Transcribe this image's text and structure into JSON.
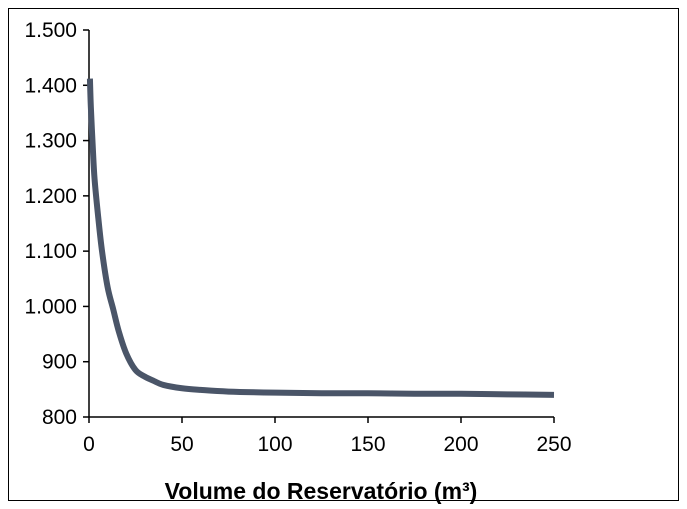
{
  "chart_data": {
    "type": "line",
    "title": "",
    "xlabel": "Volume do Reservatório (m³)",
    "ylabel": "",
    "xlim": [
      0,
      250
    ],
    "ylim": [
      800,
      1500
    ],
    "x_ticks": [
      0,
      50,
      100,
      150,
      200,
      250
    ],
    "x_tick_labels": [
      "0",
      "50",
      "100",
      "150",
      "200",
      "250"
    ],
    "y_ticks": [
      800,
      900,
      1000,
      1100,
      1200,
      1300,
      1400,
      1500
    ],
    "y_tick_labels": [
      "800",
      "900",
      "1.000",
      "1.100",
      "1.200",
      "1.300",
      "1.400",
      "1.500"
    ],
    "grid": false,
    "legend": "none",
    "series": [
      {
        "color": "#4a5568",
        "x": [
          0.5,
          1,
          2,
          3,
          5,
          7,
          10,
          13,
          16,
          20,
          25,
          30,
          35,
          40,
          50,
          60,
          75,
          100,
          125,
          150,
          175,
          200,
          225,
          250
        ],
        "y": [
          1412,
          1360,
          1290,
          1230,
          1160,
          1100,
          1035,
          995,
          955,
          915,
          885,
          873,
          865,
          858,
          852,
          849,
          846,
          844,
          843,
          843,
          842,
          842,
          841,
          840
        ]
      }
    ]
  }
}
